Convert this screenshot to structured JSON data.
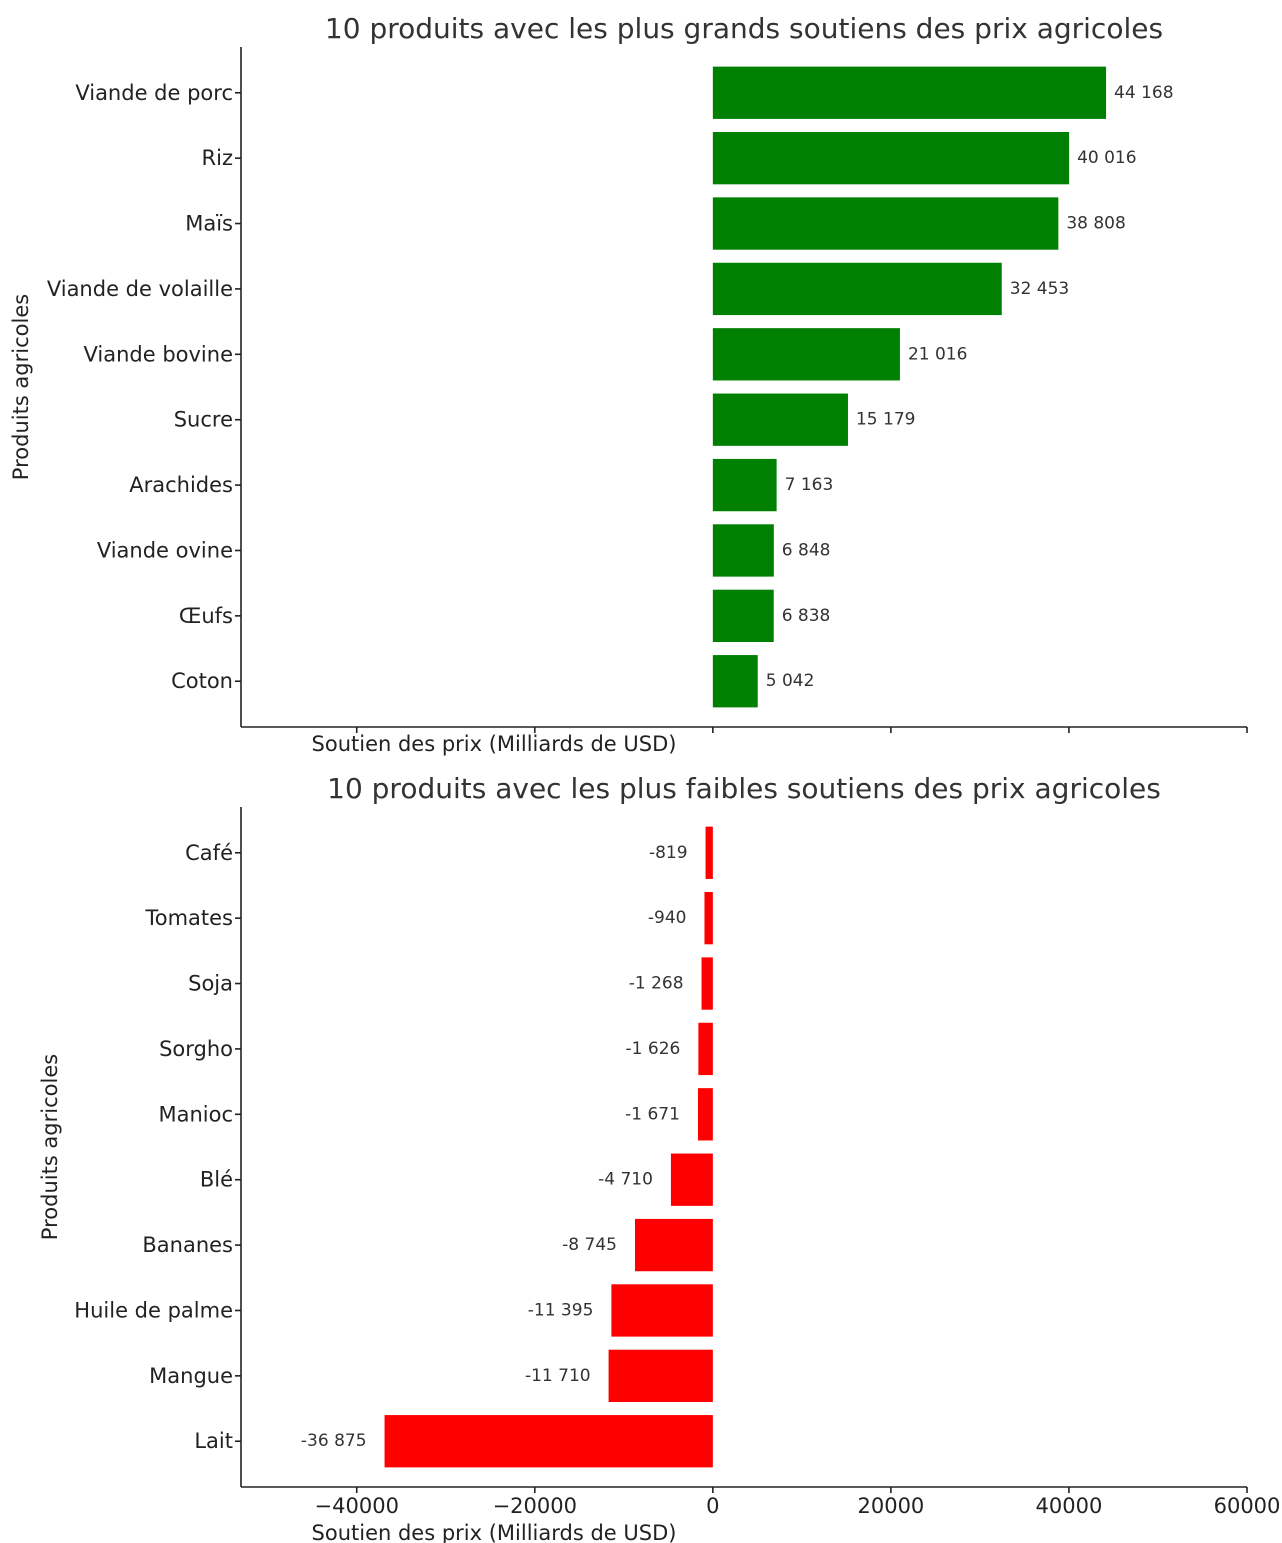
{
  "chart_data": [
    {
      "type": "bar",
      "orientation": "horizontal",
      "title": "10 produits avec les plus grands soutiens des prix agricoles",
      "xlabel": "Soutien des prix (Milliards de USD)",
      "ylabel": "Produits agricoles",
      "categories": [
        "Viande de porc",
        "Riz",
        "Maïs",
        "Viande de volaille",
        "Viande bovine",
        "Sucre",
        "Arachides",
        "Viande ovine",
        "Œufs",
        "Coton"
      ],
      "values": [
        44168,
        40016,
        38808,
        32453,
        21016,
        15179,
        7163,
        6848,
        6838,
        5042
      ],
      "value_labels": [
        "44 168",
        "40 016",
        "38 808",
        "32 453",
        "21 016",
        "15 179",
        "7 163",
        "6 848",
        "6 838",
        "5 042"
      ],
      "xlim": [
        -53000,
        60000
      ],
      "xticks": [
        -40000,
        -20000,
        0,
        20000,
        40000,
        60000
      ],
      "xtick_labels_shown": false,
      "color": "#008000",
      "grid": false
    },
    {
      "type": "bar",
      "orientation": "horizontal",
      "title": "10 produits avec les plus faibles soutiens des prix agricoles",
      "xlabel": "Soutien des prix (Milliards de USD)",
      "ylabel": "Produits agricoles",
      "categories": [
        "Café",
        "Tomates",
        "Soja",
        "Sorgho",
        "Manioc",
        "Blé",
        "Bananes",
        "Huile de palme",
        "Mangue",
        "Lait"
      ],
      "values": [
        -819,
        -940,
        -1268,
        -1626,
        -1671,
        -4710,
        -8745,
        -11395,
        -11710,
        -36875
      ],
      "value_labels": [
        "-819",
        "-940",
        "-1 268",
        "-1 626",
        "-1 671",
        "-4 710",
        "-8 745",
        "-11 395",
        "-11 710",
        "-36 875"
      ],
      "xlim": [
        -53000,
        60000
      ],
      "xticks": [
        -40000,
        -20000,
        0,
        20000,
        40000,
        60000
      ],
      "xtick_labels": [
        "−40000",
        "−20000",
        "0",
        "20000",
        "40000",
        "60000"
      ],
      "xtick_labels_shown": true,
      "color": "#ff0000",
      "grid": false
    }
  ]
}
